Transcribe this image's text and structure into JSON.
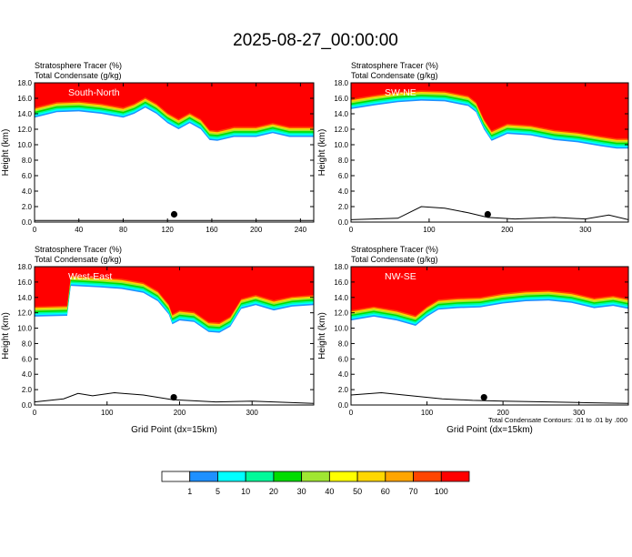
{
  "figure": {
    "title": "2025-08-27_00:00:00",
    "footnote": "Total Condensate Contours: .01 to .01 by .000"
  },
  "colorbar": {
    "colors": [
      "#ffffff",
      "#1e90ff",
      "#00ffff",
      "#00fa9a",
      "#00dd00",
      "#a0e632",
      "#ffff00",
      "#ffd700",
      "#ffa500",
      "#ff4500",
      "#ff0000"
    ],
    "labels": [
      "1",
      "5",
      "10",
      "20",
      "30",
      "40",
      "50",
      "60",
      "70",
      "100"
    ]
  },
  "chart_data": [
    {
      "type": "contour-filled",
      "panel_label": "South-North",
      "header_line1": "Stratosphere Tracer   (%)",
      "header_line2": "Total Condensate   (g/kg)",
      "ylabel": "Height (km)",
      "xlabel": "",
      "xlim": [
        0,
        252
      ],
      "ylim": [
        0,
        18
      ],
      "xticks": [
        "0",
        "40",
        "80",
        "120",
        "160",
        "200",
        "240"
      ],
      "yticks": [
        "0.0",
        "2.0",
        "4.0",
        "6.0",
        "8.0",
        "10.0",
        "12.0",
        "14.0",
        "16.0",
        "18.0"
      ],
      "marker_x": 126,
      "tropopause_km": [
        [
          0,
          13.5
        ],
        [
          20,
          14.2
        ],
        [
          40,
          14.3
        ],
        [
          60,
          14.0
        ],
        [
          80,
          13.5
        ],
        [
          90,
          14.0
        ],
        [
          100,
          14.8
        ],
        [
          110,
          14.0
        ],
        [
          120,
          12.8
        ],
        [
          130,
          12.0
        ],
        [
          140,
          12.8
        ],
        [
          150,
          12.0
        ],
        [
          158,
          10.6
        ],
        [
          165,
          10.5
        ],
        [
          180,
          11.0
        ],
        [
          200,
          11.0
        ],
        [
          215,
          11.5
        ],
        [
          230,
          11.0
        ],
        [
          252,
          11.0
        ]
      ],
      "terrain_km": [
        [
          0,
          0.2
        ],
        [
          252,
          0.2
        ]
      ]
    },
    {
      "type": "contour-filled",
      "panel_label": "SW-NE",
      "header_line1": "Stratosphere Tracer   (%)",
      "header_line2": "Total Condensate   (g/kg)",
      "ylabel": "Height (km)",
      "xlabel": "",
      "xlim": [
        0,
        355
      ],
      "ylim": [
        0,
        18
      ],
      "xticks": [
        "0",
        "100",
        "200",
        "300"
      ],
      "yticks": [
        "0.0",
        "2.0",
        "4.0",
        "6.0",
        "8.0",
        "10.0",
        "12.0",
        "14.0",
        "16.0",
        "18.0"
      ],
      "marker_x": 175,
      "tropopause_km": [
        [
          0,
          14.6
        ],
        [
          30,
          15.1
        ],
        [
          60,
          15.5
        ],
        [
          90,
          15.7
        ],
        [
          120,
          15.6
        ],
        [
          150,
          15.0
        ],
        [
          160,
          14.2
        ],
        [
          170,
          12.0
        ],
        [
          180,
          10.5
        ],
        [
          200,
          11.4
        ],
        [
          230,
          11.2
        ],
        [
          260,
          10.6
        ],
        [
          290,
          10.3
        ],
        [
          320,
          9.8
        ],
        [
          340,
          9.5
        ],
        [
          355,
          9.5
        ]
      ],
      "terrain_km": [
        [
          0,
          0.3
        ],
        [
          60,
          0.5
        ],
        [
          90,
          2.0
        ],
        [
          120,
          1.8
        ],
        [
          150,
          1.2
        ],
        [
          175,
          0.6
        ],
        [
          210,
          0.4
        ],
        [
          260,
          0.6
        ],
        [
          300,
          0.4
        ],
        [
          330,
          0.9
        ],
        [
          355,
          0.3
        ]
      ]
    },
    {
      "type": "contour-filled",
      "panel_label": "West-East",
      "header_line1": "Stratosphere Tracer   (%)",
      "header_line2": "Total Condensate   (g/kg)",
      "ylabel": "Height (km)",
      "xlabel": "Grid Point (dx=15km)",
      "xlim": [
        0,
        385
      ],
      "ylim": [
        0,
        18
      ],
      "xticks": [
        "0",
        "100",
        "200",
        "300"
      ],
      "yticks": [
        "0.0",
        "2.0",
        "4.0",
        "6.0",
        "8.0",
        "10.0",
        "12.0",
        "14.0",
        "16.0",
        "18.0"
      ],
      "marker_x": 192,
      "tropopause_km": [
        [
          0,
          11.5
        ],
        [
          45,
          11.6
        ],
        [
          50,
          15.5
        ],
        [
          90,
          15.3
        ],
        [
          120,
          15.1
        ],
        [
          150,
          14.6
        ],
        [
          170,
          13.5
        ],
        [
          185,
          11.8
        ],
        [
          190,
          10.5
        ],
        [
          200,
          11.0
        ],
        [
          220,
          10.8
        ],
        [
          240,
          9.5
        ],
        [
          255,
          9.4
        ],
        [
          270,
          10.2
        ],
        [
          285,
          12.5
        ],
        [
          305,
          13.0
        ],
        [
          330,
          12.3
        ],
        [
          355,
          12.8
        ],
        [
          385,
          13.0
        ]
      ],
      "terrain_km": [
        [
          0,
          0.4
        ],
        [
          40,
          0.8
        ],
        [
          60,
          1.5
        ],
        [
          80,
          1.2
        ],
        [
          110,
          1.6
        ],
        [
          150,
          1.3
        ],
        [
          190,
          0.7
        ],
        [
          250,
          0.4
        ],
        [
          300,
          0.5
        ],
        [
          385,
          0.2
        ]
      ]
    },
    {
      "type": "contour-filled",
      "panel_label": "NW-SE",
      "header_line1": "Stratosphere Tracer   (%)",
      "header_line2": "Total Condensate   (g/kg)",
      "ylabel": "Height (km)",
      "xlabel": "Grid Point (dx=15km)",
      "xlim": [
        0,
        365
      ],
      "ylim": [
        0,
        18
      ],
      "xticks": [
        "0",
        "100",
        "200",
        "300"
      ],
      "yticks": [
        "0.0",
        "2.0",
        "4.0",
        "6.0",
        "8.0",
        "10.0",
        "12.0",
        "14.0",
        "16.0",
        "18.0"
      ],
      "marker_x": 175,
      "tropopause_km": [
        [
          0,
          11.0
        ],
        [
          30,
          11.5
        ],
        [
          60,
          11.0
        ],
        [
          85,
          10.3
        ],
        [
          100,
          11.5
        ],
        [
          115,
          12.4
        ],
        [
          140,
          12.6
        ],
        [
          170,
          12.7
        ],
        [
          200,
          13.2
        ],
        [
          230,
          13.5
        ],
        [
          260,
          13.6
        ],
        [
          290,
          13.3
        ],
        [
          320,
          12.6
        ],
        [
          345,
          12.9
        ],
        [
          365,
          12.5
        ]
      ],
      "terrain_km": [
        [
          0,
          1.3
        ],
        [
          40,
          1.6
        ],
        [
          80,
          1.2
        ],
        [
          120,
          0.8
        ],
        [
          160,
          0.6
        ],
        [
          200,
          0.5
        ],
        [
          260,
          0.4
        ],
        [
          310,
          0.3
        ],
        [
          365,
          0.2
        ]
      ]
    }
  ]
}
